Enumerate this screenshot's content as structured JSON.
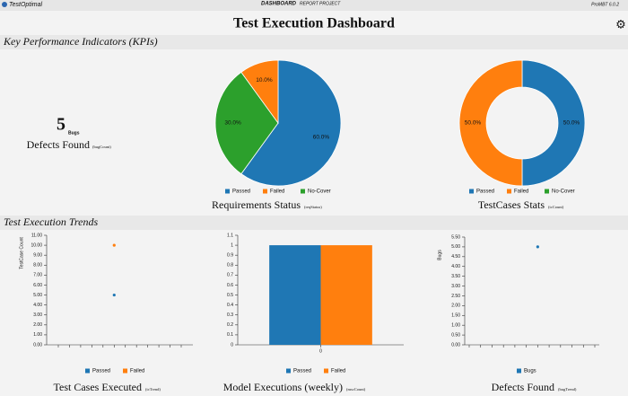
{
  "header": {
    "logo": "TestOptimal",
    "nav": [
      "DASHBOARD",
      "REPORT",
      "PROJECT"
    ],
    "version": "ProMBT 6.0.2",
    "title": "Test Execution Dashboard"
  },
  "sections": [
    "Key Performance Indicators (KPIs)",
    "Test Execution Trends"
  ],
  "kpi": {
    "value": 5,
    "unit": "Bugs",
    "label": "Defects Found",
    "source": "(bugCount)"
  },
  "chart_data": [
    {
      "type": "pie",
      "title": "Requirements Status",
      "subtitle": "(reqStatus)",
      "categories": [
        "Passed",
        "Failed",
        "No-Cover"
      ],
      "values": [
        60,
        10,
        30
      ],
      "value_labels": [
        "60.0%",
        "10.0%",
        "30.0%"
      ],
      "colors": [
        "#1f77b4",
        "#ff7f0e",
        "#2ca02c"
      ]
    },
    {
      "type": "donut",
      "title": "TestCases Stats",
      "subtitle": "(tcCount)",
      "categories": [
        "Passed",
        "Failed",
        "No-Cover"
      ],
      "values": [
        50,
        50,
        0
      ],
      "value_labels": [
        "50.0%",
        "50.0%",
        null
      ],
      "colors": [
        "#1f77b4",
        "#ff7f0e",
        "#2ca02c"
      ]
    },
    {
      "type": "scatter",
      "title": "Test Cases Executed",
      "subtitle": "(tcTrend)",
      "ylabel": "TestCase Count",
      "categories": [
        null,
        null,
        null,
        null,
        null,
        null,
        null,
        null,
        null,
        null,
        null,
        null
      ],
      "series": [
        {
          "name": "Passed",
          "color": "#1f77b4",
          "values": [
            null,
            null,
            null,
            null,
            null,
            5,
            null,
            null,
            null,
            null,
            null,
            null
          ]
        },
        {
          "name": "Failed",
          "color": "#ff7f0e",
          "values": [
            null,
            null,
            null,
            null,
            null,
            10,
            null,
            null,
            null,
            null,
            null,
            null
          ]
        }
      ],
      "ylim": [
        0,
        11
      ],
      "yticks": [
        {
          "value": 0,
          "label": "0.00"
        },
        {
          "value": 1,
          "label": "1.00"
        },
        {
          "value": 2,
          "label": "2.00"
        },
        {
          "value": 3,
          "label": "3.00"
        },
        {
          "value": 4,
          "label": "4.00"
        },
        {
          "value": 5,
          "label": "5.00"
        },
        {
          "value": 6,
          "label": "6.00"
        },
        {
          "value": 7,
          "label": "7.00"
        },
        {
          "value": 8,
          "label": "8.00"
        },
        {
          "value": 9,
          "label": "9.00"
        },
        {
          "value": 10,
          "label": "10.00"
        },
        {
          "value": 11,
          "label": "11.00"
        }
      ]
    },
    {
      "type": "bar",
      "title": "Model Executions (weekly)",
      "subtitle": "(mscCount)",
      "categories": [
        "0"
      ],
      "series": [
        {
          "name": "Passed",
          "color": "#1f77b4",
          "values": [
            1
          ]
        },
        {
          "name": "Failed",
          "color": "#ff7f0e",
          "values": [
            1
          ]
        }
      ],
      "ylim": [
        0,
        1.1
      ],
      "yticks": [
        0,
        0.1,
        0.2,
        0.3,
        0.4,
        0.5,
        0.6,
        0.7,
        0.8,
        0.9,
        1,
        1.1
      ]
    },
    {
      "type": "scatter",
      "title": "Defects Found",
      "subtitle": "(bugTrend)",
      "ylabel": "Bugs",
      "categories": [
        null,
        null,
        null,
        null,
        null,
        null,
        null,
        null,
        null,
        null,
        null,
        null
      ],
      "series": [
        {
          "name": "Bugs",
          "color": "#1f77b4",
          "values": [
            null,
            null,
            null,
            null,
            null,
            null,
            5,
            null,
            null,
            null,
            null,
            null
          ]
        }
      ],
      "ylim": [
        0,
        5.5
      ],
      "yticks": [
        {
          "value": 0,
          "label": "0.00"
        },
        {
          "value": 0.5,
          "label": "0.50"
        },
        {
          "value": 1,
          "label": "1.00"
        },
        {
          "value": 1.5,
          "label": "1.50"
        },
        {
          "value": 2,
          "label": "2.00"
        },
        {
          "value": 2.5,
          "label": "2.50"
        },
        {
          "value": 3,
          "label": "3.00"
        },
        {
          "value": 3.5,
          "label": "3.50"
        },
        {
          "value": 4,
          "label": "4.00"
        },
        {
          "value": 4.5,
          "label": "4.50"
        },
        {
          "value": 5,
          "label": "5.00"
        },
        {
          "value": 5.5,
          "label": "5.50"
        }
      ]
    }
  ]
}
